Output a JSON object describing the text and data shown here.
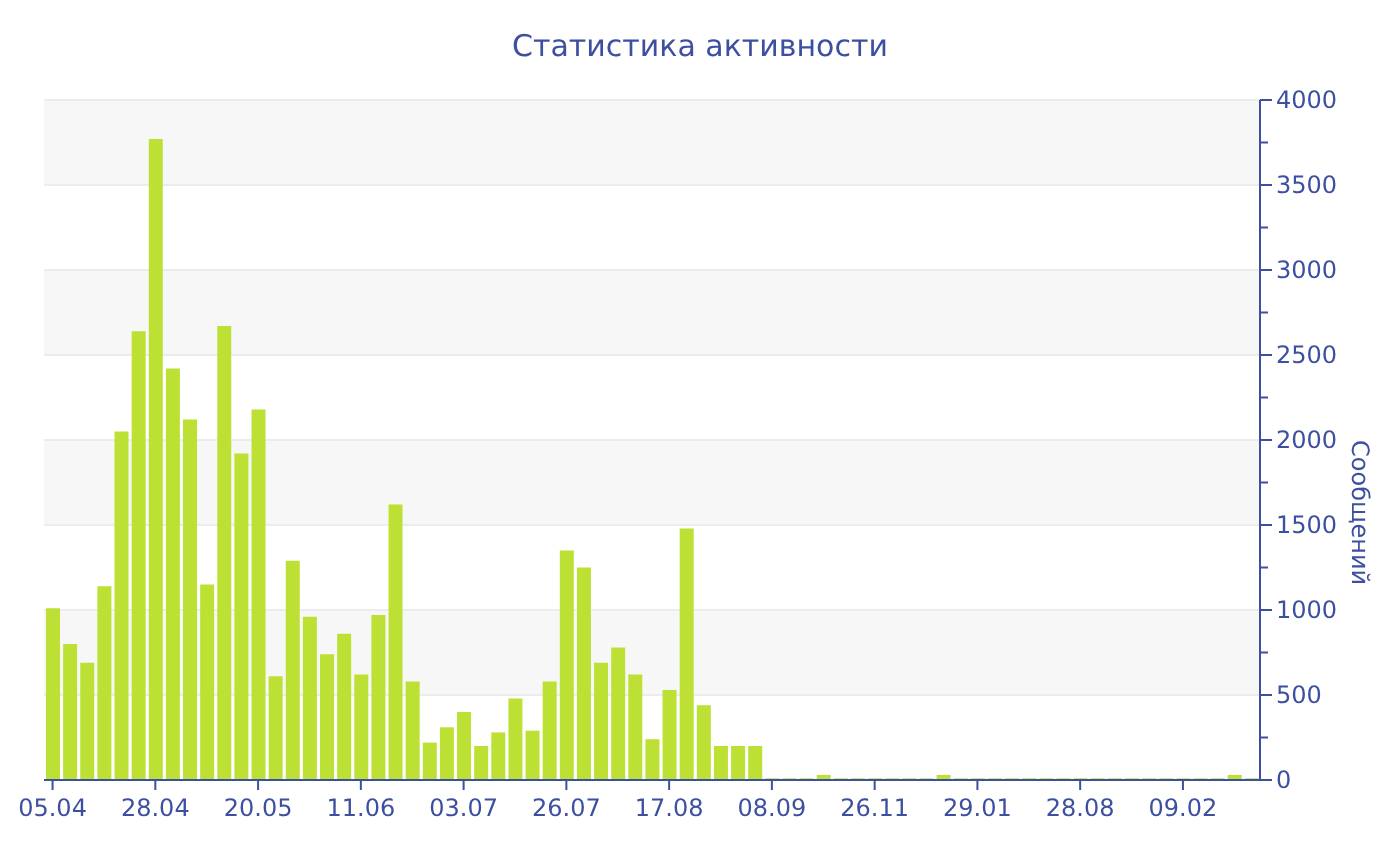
{
  "chart_data": {
    "type": "bar",
    "title": "Статистика активности",
    "ylabel": "Сообщений",
    "categories": [
      "05.04",
      null,
      null,
      null,
      null,
      null,
      "28.04",
      null,
      null,
      null,
      null,
      null,
      "20.05",
      null,
      null,
      null,
      null,
      null,
      "11.06",
      null,
      null,
      null,
      null,
      null,
      "03.07",
      null,
      null,
      null,
      null,
      null,
      "26.07",
      null,
      null,
      null,
      null,
      null,
      "17.08",
      null,
      null,
      null,
      null,
      null,
      "08.09",
      null,
      null,
      null,
      null,
      null,
      "26.11",
      null,
      null,
      null,
      null,
      null,
      "29.01",
      null,
      null,
      null,
      null,
      null,
      "28.08",
      null,
      null,
      null,
      null,
      null,
      "09.02",
      null,
      null,
      null,
      null
    ],
    "values": [
      1010,
      800,
      690,
      1140,
      2050,
      2640,
      3770,
      2420,
      2120,
      1150,
      2670,
      1920,
      2180,
      610,
      1290,
      960,
      740,
      860,
      620,
      970,
      1620,
      580,
      220,
      310,
      400,
      200,
      280,
      480,
      290,
      580,
      1350,
      1250,
      690,
      780,
      620,
      240,
      530,
      1480,
      440,
      200,
      200,
      200,
      10,
      10,
      10,
      30,
      10,
      10,
      10,
      10,
      10,
      10,
      30,
      10,
      10,
      10,
      10,
      10,
      10,
      10,
      10,
      10,
      10,
      10,
      10,
      10,
      10,
      10,
      10,
      30,
      10
    ],
    "color": "#bde035",
    "ylim": [
      0,
      4000
    ],
    "yticks": [
      0,
      {
        "value": 250,
        "label": null
      },
      500,
      {
        "value": 750,
        "label": null
      },
      1000,
      {
        "value": 1250,
        "label": null
      },
      1500,
      {
        "value": 1750,
        "label": null
      },
      2000,
      {
        "value": 2250,
        "label": null
      },
      2500,
      {
        "value": 2750,
        "label": null
      },
      3000,
      {
        "value": 3250,
        "label": null
      },
      3500,
      {
        "value": 3750,
        "label": null
      },
      4000
    ],
    "grid": "y"
  }
}
